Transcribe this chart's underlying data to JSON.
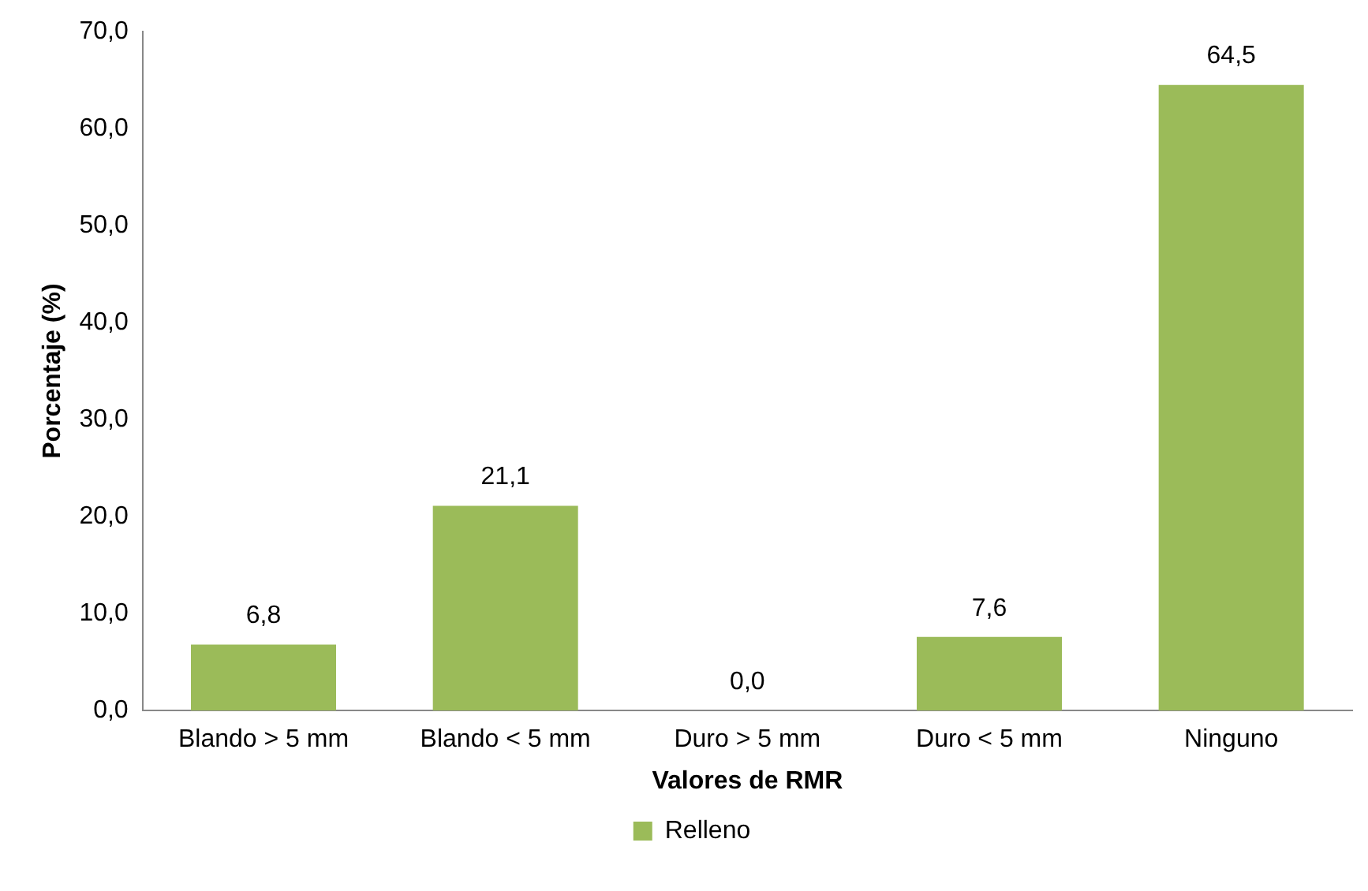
{
  "chart_data": {
    "type": "bar",
    "xlabel": "Valores de RMR",
    "ylabel": "Porcentaje (%)",
    "categories": [
      "Blando > 5 mm",
      "Blando < 5 mm",
      "Duro > 5 mm",
      "Duro < 5 mm",
      "Ninguno"
    ],
    "series": [
      {
        "name": "Relleno",
        "color": "#9bbb59",
        "values": [
          6.8,
          21.1,
          0.0,
          7.6,
          64.5
        ],
        "value_labels": [
          "6,8",
          "21,1",
          "0,0",
          "7,6",
          "64,5"
        ]
      }
    ],
    "ylim": [
      0,
      70
    ],
    "yticks": [
      {
        "value": 0,
        "label": "0,0"
      },
      {
        "value": 10,
        "label": "10,0"
      },
      {
        "value": 20,
        "label": "20,0"
      },
      {
        "value": 30,
        "label": "30,0"
      },
      {
        "value": 40,
        "label": "40,0"
      },
      {
        "value": 50,
        "label": "50,0"
      },
      {
        "value": 60,
        "label": "60,0"
      },
      {
        "value": 70,
        "label": "70,0"
      }
    ],
    "grid": false,
    "legend": "bottom"
  }
}
